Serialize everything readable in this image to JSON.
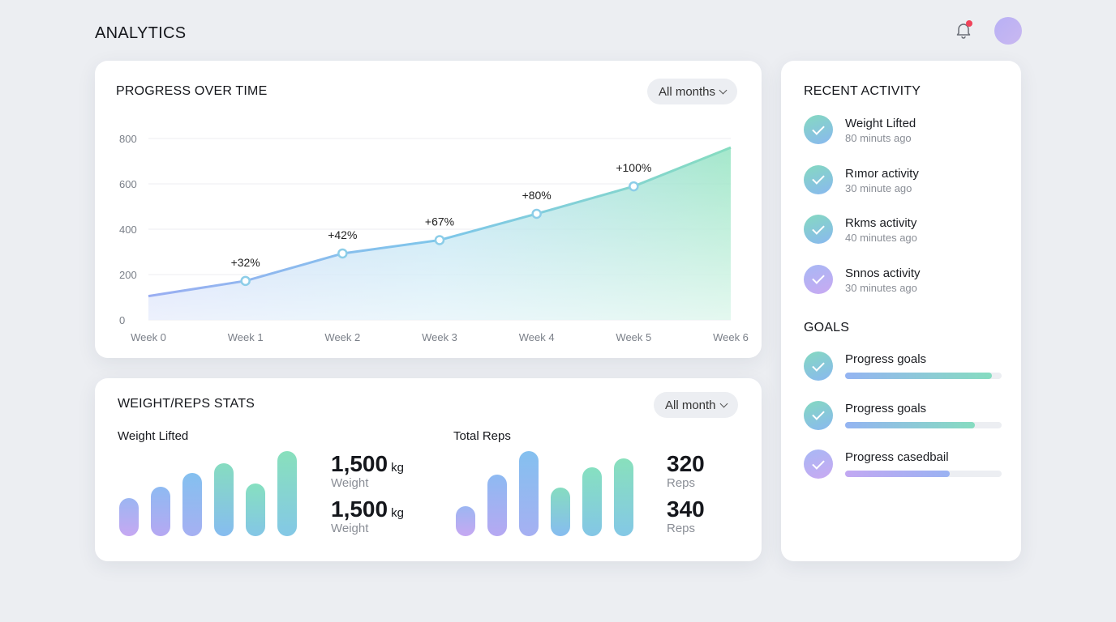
{
  "header": {
    "title": "ANALYTICS",
    "bell_icon": "bell-icon",
    "has_notification": true,
    "avatar_color": "#c3b6f2"
  },
  "progress": {
    "title": "PROGRESS OVER TIME",
    "filter": "All months"
  },
  "chart_data": {
    "type": "area",
    "categories": [
      "Week 0",
      "Week 1",
      "Week 2",
      "Week 3",
      "Week 4",
      "Week 5",
      "Week 6"
    ],
    "values": [
      105,
      172,
      293,
      352,
      468,
      589,
      760
    ],
    "annotations": [
      "",
      "+32%",
      "+42%",
      "+67%",
      "+80%",
      "+100%",
      ""
    ],
    "ylim": [
      0,
      800
    ],
    "yticks": [
      "800",
      "600",
      "400",
      "200",
      "0"
    ],
    "grid": true
  },
  "stats": {
    "title": "WEIGHT/REPS STATS",
    "filter": "All month",
    "weight": {
      "label": "Weight Lifted",
      "bars": [
        0.45,
        0.58,
        0.74,
        0.86,
        0.62,
        1.0
      ],
      "values": [
        {
          "value": "1,500",
          "unit": "kg",
          "label": "Weight"
        },
        {
          "value": "1,500",
          "unit": "kg",
          "label": "Weight"
        }
      ]
    },
    "reps": {
      "label": "Total Reps",
      "bars": [
        0.35,
        0.72,
        1.0,
        0.57,
        0.81,
        0.91
      ],
      "values": [
        {
          "value": "320",
          "label": "Reps"
        },
        {
          "value": "340",
          "label": "Reps"
        }
      ]
    }
  },
  "activity": {
    "title": "RECENT ACTIVITY",
    "items": [
      {
        "title": "Weight Lifted",
        "time": "80 minuts ago"
      },
      {
        "title": "Rımor activity",
        "time": "30 minute ago"
      },
      {
        "title": "Rkms activity",
        "time": "40 minutes ago"
      },
      {
        "title": "Snnos activity",
        "time": "30 minutes ago"
      }
    ]
  },
  "goals": {
    "title": "GOALS",
    "items": [
      {
        "label": "Progress goals",
        "progress": 0.94
      },
      {
        "label": "Progress goals",
        "progress": 0.83
      },
      {
        "label": "Progress casedbail",
        "progress": 0.67
      }
    ]
  }
}
